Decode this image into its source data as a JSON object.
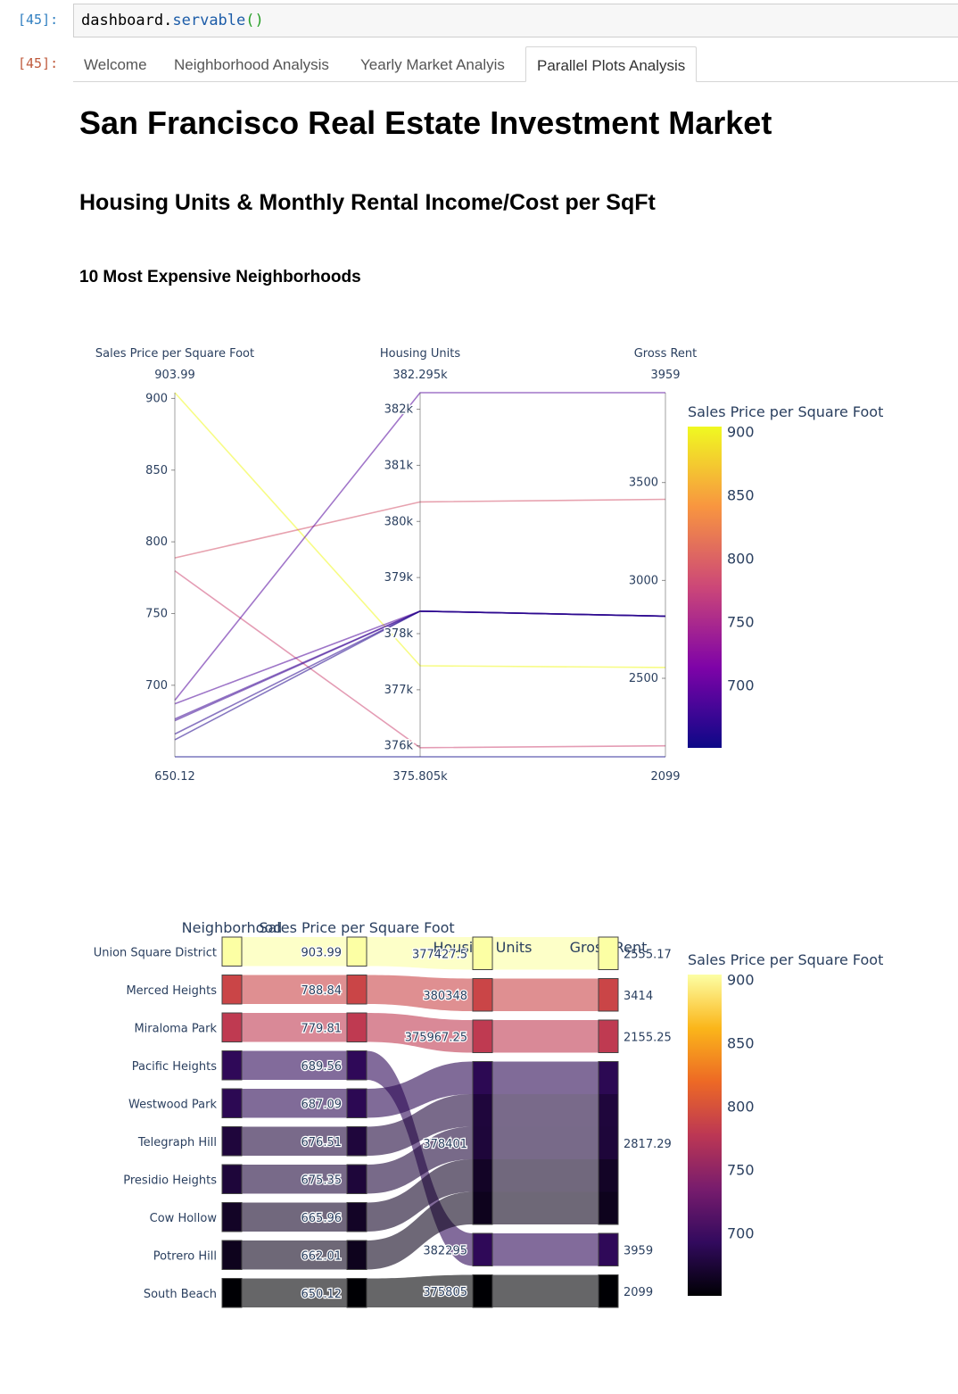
{
  "notebook": {
    "in_prompt": "[45]:",
    "out_prompt": "[45]:",
    "code_obj": "dashboard",
    "code_dot": ".",
    "code_fn": "servable",
    "code_parens": "()"
  },
  "tabs": [
    {
      "label": "Welcome",
      "active": false
    },
    {
      "label": "Neighborhood Analysis",
      "active": false
    },
    {
      "label": "Yearly Market Analyis",
      "active": false
    },
    {
      "label": "Parallel Plots Analysis",
      "active": true
    }
  ],
  "page": {
    "title": "San Francisco Real Estate Investment Market",
    "section_title": "Housing Units & Monthly Rental Income/Cost per SqFt",
    "sub_title": "10 Most Expensive Neighborhoods"
  },
  "colors": {
    "colorscale": [
      "#0d0887",
      "#7e03a8",
      "#cc4778",
      "#f89540",
      "#f0f921"
    ],
    "colorscale_categories": [
      "#000004",
      "#320a5e",
      "#781c6d",
      "#bc3754",
      "#ed6925",
      "#fbb61a",
      "#fcffa4"
    ],
    "axis_line": "#444444",
    "tick_text": "#2a3f5f"
  },
  "chart_data": [
    {
      "type": "parallel_coordinates",
      "dimensions": [
        {
          "label": "Sales Price per Square Foot",
          "range_label_max": "903.99",
          "range_label_min": "650.12",
          "range": [
            650.12,
            903.99
          ],
          "ticks": [
            700,
            750,
            800,
            850,
            900
          ],
          "tick_labels": [
            "700",
            "750",
            "800",
            "850",
            "900"
          ]
        },
        {
          "label": "Housing Units",
          "range_label_max": "382.295k",
          "range_label_min": "375.805k",
          "range": [
            375805,
            382295
          ],
          "ticks": [
            376000,
            377000,
            378000,
            379000,
            380000,
            381000,
            382000
          ],
          "tick_labels": [
            "376k",
            "377k",
            "378k",
            "379k",
            "380k",
            "381k",
            "382k"
          ]
        },
        {
          "label": "Gross Rent",
          "range_label_max": "3959",
          "range_label_min": "2099",
          "range": [
            2099,
            3959
          ],
          "ticks": [
            2500,
            3000,
            3500
          ],
          "tick_labels": [
            "2500",
            "3000",
            "3500"
          ]
        }
      ],
      "rows": [
        {
          "sale_price_sqr_foot": 903.99,
          "housing_units": 377427.5,
          "gross_rent": 2555.17
        },
        {
          "sale_price_sqr_foot": 788.84,
          "housing_units": 380348,
          "gross_rent": 3414
        },
        {
          "sale_price_sqr_foot": 779.81,
          "housing_units": 375967.25,
          "gross_rent": 2155.25
        },
        {
          "sale_price_sqr_foot": 689.56,
          "housing_units": 382295,
          "gross_rent": 3959
        },
        {
          "sale_price_sqr_foot": 687.09,
          "housing_units": 378401,
          "gross_rent": 2817.29
        },
        {
          "sale_price_sqr_foot": 676.51,
          "housing_units": 378401,
          "gross_rent": 2817.29
        },
        {
          "sale_price_sqr_foot": 675.35,
          "housing_units": 378401,
          "gross_rent": 2817.29
        },
        {
          "sale_price_sqr_foot": 665.96,
          "housing_units": 378401,
          "gross_rent": 2817.29
        },
        {
          "sale_price_sqr_foot": 662.01,
          "housing_units": 378401,
          "gross_rent": 2817.29
        },
        {
          "sale_price_sqr_foot": 650.12,
          "housing_units": 375805,
          "gross_rent": 2099
        }
      ],
      "colorbar": {
        "title": "Sales Price per Square Foot",
        "ticks": [
          700,
          750,
          800,
          850,
          900
        ],
        "range": [
          650.12,
          903.99
        ]
      }
    },
    {
      "type": "parallel_categories",
      "dimensions": [
        {
          "label": "Neighborhood",
          "categories": [
            "Union Square District",
            "Merced Heights",
            "Miraloma Park",
            "Pacific Heights",
            "Westwood Park",
            "Telegraph Hill",
            "Presidio Heights",
            "Cow Hollow",
            "Potrero Hill",
            "South Beach"
          ]
        },
        {
          "label": "Sales Price per Square Foot",
          "categories": [
            "903.99",
            "788.84",
            "779.81",
            "689.56",
            "687.09",
            "676.51",
            "675.35",
            "665.96",
            "662.01",
            "650.12"
          ]
        },
        {
          "label": "Housing Units",
          "categories": [
            "377427.5",
            "380348",
            "375967.25",
            "378401",
            "382295",
            "375805"
          ]
        },
        {
          "label": "Gross Rent",
          "categories": [
            "2555.17",
            "3414",
            "2155.25",
            "2817.29",
            "3959",
            "2099"
          ]
        }
      ],
      "rows": [
        {
          "neighborhood": "Union Square District",
          "sale_price_sqr_foot": 903.99,
          "housing_units": 377427.5,
          "gross_rent": 2555.17
        },
        {
          "neighborhood": "Merced Heights",
          "sale_price_sqr_foot": 788.84,
          "housing_units": 380348,
          "gross_rent": 3414
        },
        {
          "neighborhood": "Miraloma Park",
          "sale_price_sqr_foot": 779.81,
          "housing_units": 375967.25,
          "gross_rent": 2155.25
        },
        {
          "neighborhood": "Pacific Heights",
          "sale_price_sqr_foot": 689.56,
          "housing_units": 382295,
          "gross_rent": 3959
        },
        {
          "neighborhood": "Westwood Park",
          "sale_price_sqr_foot": 687.09,
          "housing_units": 378401,
          "gross_rent": 2817.29
        },
        {
          "neighborhood": "Telegraph Hill",
          "sale_price_sqr_foot": 676.51,
          "housing_units": 378401,
          "gross_rent": 2817.29
        },
        {
          "neighborhood": "Presidio Heights",
          "sale_price_sqr_foot": 675.35,
          "housing_units": 378401,
          "gross_rent": 2817.29
        },
        {
          "neighborhood": "Cow Hollow",
          "sale_price_sqr_foot": 665.96,
          "housing_units": 378401,
          "gross_rent": 2817.29
        },
        {
          "neighborhood": "Potrero Hill",
          "sale_price_sqr_foot": 662.01,
          "housing_units": 378401,
          "gross_rent": 2817.29
        },
        {
          "neighborhood": "South Beach",
          "sale_price_sqr_foot": 650.12,
          "housing_units": 375805,
          "gross_rent": 2099
        }
      ],
      "colorbar": {
        "title": "Sales Price per Square Foot",
        "ticks": [
          700,
          750,
          800,
          850,
          900
        ],
        "range": [
          650.12,
          903.99
        ]
      }
    }
  ]
}
